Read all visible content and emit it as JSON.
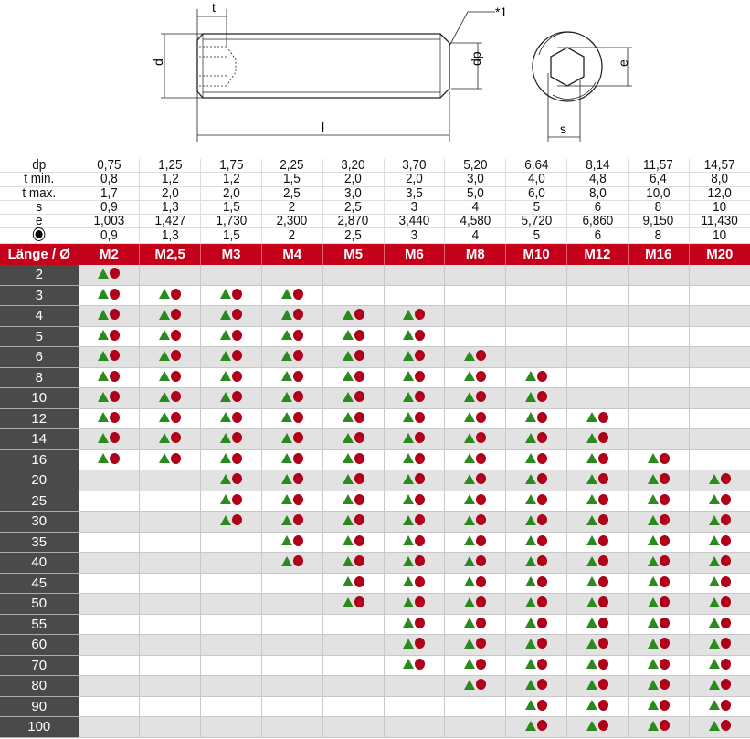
{
  "drawing": {
    "labels": {
      "t": "t",
      "d": "d",
      "l": "l",
      "dp": "dp",
      "e": "e",
      "s": "s",
      "note": "*1"
    }
  },
  "spec": {
    "rows": [
      {
        "label": "dp",
        "values": [
          "0,75",
          "1,25",
          "1,75",
          "2,25",
          "3,20",
          "3,70",
          "5,20",
          "6,64",
          "8,14",
          "11,57",
          "14,57"
        ]
      },
      {
        "label": "t min.",
        "values": [
          "0,8",
          "1,2",
          "1,2",
          "1,5",
          "2,0",
          "2,0",
          "3,0",
          "4,0",
          "4,8",
          "6,4",
          "8,0"
        ]
      },
      {
        "label": "t max.",
        "values": [
          "1,7",
          "2,0",
          "2,0",
          "2,5",
          "3,0",
          "3,5",
          "5,0",
          "6,0",
          "8,0",
          "10,0",
          "12,0"
        ]
      },
      {
        "label": "s",
        "values": [
          "0,9",
          "1,3",
          "1,5",
          "2",
          "2,5",
          "3",
          "4",
          "5",
          "6",
          "8",
          "10"
        ]
      },
      {
        "label": "e",
        "values": [
          "1,003",
          "1,427",
          "1,730",
          "2,300",
          "2,870",
          "3,440",
          "4,580",
          "5,720",
          "6,860",
          "9,150",
          "11,430"
        ]
      },
      {
        "label": "",
        "icon": "hex-socket-icon",
        "values": [
          "0,9",
          "1,3",
          "1,5",
          "2",
          "2,5",
          "3",
          "4",
          "5",
          "6",
          "8",
          "10"
        ]
      }
    ]
  },
  "grid": {
    "header": "Länge / Ø",
    "sizes": [
      "M2",
      "M2,5",
      "M3",
      "M4",
      "M5",
      "M6",
      "M8",
      "M10",
      "M12",
      "M16",
      "M20"
    ],
    "colors": {
      "header": "#c4001a",
      "triangle": "#2a8a1e",
      "circle": "#b0001a",
      "length_col": "#4a4a4a"
    },
    "marker_icons": [
      "green-triangle-icon",
      "red-circle-icon"
    ],
    "rows": [
      {
        "length": "2",
        "available": [
          "M2"
        ]
      },
      {
        "length": "3",
        "available": [
          "M2",
          "M2,5",
          "M3",
          "M4"
        ]
      },
      {
        "length": "4",
        "available": [
          "M2",
          "M2,5",
          "M3",
          "M4",
          "M5",
          "M6"
        ]
      },
      {
        "length": "5",
        "available": [
          "M2",
          "M2,5",
          "M3",
          "M4",
          "M5",
          "M6"
        ]
      },
      {
        "length": "6",
        "available": [
          "M2",
          "M2,5",
          "M3",
          "M4",
          "M5",
          "M6",
          "M8"
        ]
      },
      {
        "length": "8",
        "available": [
          "M2",
          "M2,5",
          "M3",
          "M4",
          "M5",
          "M6",
          "M8",
          "M10"
        ]
      },
      {
        "length": "10",
        "available": [
          "M2",
          "M2,5",
          "M3",
          "M4",
          "M5",
          "M6",
          "M8",
          "M10"
        ]
      },
      {
        "length": "12",
        "available": [
          "M2",
          "M2,5",
          "M3",
          "M4",
          "M5",
          "M6",
          "M8",
          "M10",
          "M12"
        ]
      },
      {
        "length": "14",
        "available": [
          "M2",
          "M2,5",
          "M3",
          "M4",
          "M5",
          "M6",
          "M8",
          "M10",
          "M12"
        ]
      },
      {
        "length": "16",
        "available": [
          "M2",
          "M2,5",
          "M3",
          "M4",
          "M5",
          "M6",
          "M8",
          "M10",
          "M12",
          "M16"
        ]
      },
      {
        "length": "20",
        "available": [
          "M3",
          "M4",
          "M5",
          "M6",
          "M8",
          "M10",
          "M12",
          "M16",
          "M20"
        ]
      },
      {
        "length": "25",
        "available": [
          "M3",
          "M4",
          "M5",
          "M6",
          "M8",
          "M10",
          "M12",
          "M16",
          "M20"
        ]
      },
      {
        "length": "30",
        "available": [
          "M3",
          "M4",
          "M5",
          "M6",
          "M8",
          "M10",
          "M12",
          "M16",
          "M20"
        ]
      },
      {
        "length": "35",
        "available": [
          "M4",
          "M5",
          "M6",
          "M8",
          "M10",
          "M12",
          "M16",
          "M20"
        ]
      },
      {
        "length": "40",
        "available": [
          "M4",
          "M5",
          "M6",
          "M8",
          "M10",
          "M12",
          "M16",
          "M20"
        ]
      },
      {
        "length": "45",
        "available": [
          "M5",
          "M6",
          "M8",
          "M10",
          "M12",
          "M16",
          "M20"
        ]
      },
      {
        "length": "50",
        "available": [
          "M5",
          "M6",
          "M8",
          "M10",
          "M12",
          "M16",
          "M20"
        ]
      },
      {
        "length": "55",
        "available": [
          "M6",
          "M8",
          "M10",
          "M12",
          "M16",
          "M20"
        ]
      },
      {
        "length": "60",
        "available": [
          "M6",
          "M8",
          "M10",
          "M12",
          "M16",
          "M20"
        ]
      },
      {
        "length": "70",
        "available": [
          "M6",
          "M8",
          "M10",
          "M12",
          "M16",
          "M20"
        ]
      },
      {
        "length": "80",
        "available": [
          "M8",
          "M10",
          "M12",
          "M16",
          "M20"
        ]
      },
      {
        "length": "90",
        "available": [
          "M10",
          "M12",
          "M16",
          "M20"
        ]
      },
      {
        "length": "100",
        "available": [
          "M10",
          "M12",
          "M16",
          "M20"
        ]
      }
    ]
  }
}
